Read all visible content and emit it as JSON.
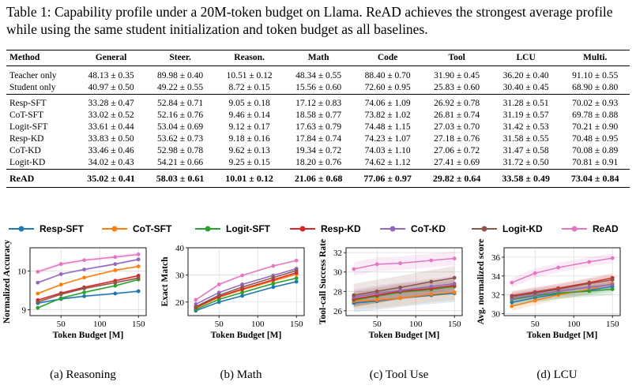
{
  "caption": "Table 1: Capability profile under a 20M-token budget on Llama. ReAD achieves the strongest average profile while using the same student initialization and token budget as all baselines.",
  "table": {
    "headers": [
      "Method",
      "General",
      "Steer.",
      "Reason.",
      "Math",
      "Code",
      "Tool",
      "LCU",
      "Multi."
    ],
    "groups": [
      [
        [
          "Teacher only",
          "48.13 ± 0.35",
          "89.98 ± 0.40",
          "10.51 ± 0.12",
          "48.34 ± 0.55",
          "88.40 ± 0.70",
          "31.90 ± 0.45",
          "36.20 ± 0.40",
          "91.10 ± 0.55"
        ],
        [
          "Student only",
          "40.97 ± 0.50",
          "49.22 ± 0.55",
          "8.72 ± 0.15",
          "15.56 ± 0.60",
          "72.60 ± 0.95",
          "25.83 ± 0.60",
          "30.40 ± 0.45",
          "68.90 ± 0.80"
        ]
      ],
      [
        [
          "Resp-SFT",
          "33.28 ± 0.47",
          "52.84 ± 0.71",
          "9.05 ± 0.18",
          "17.12 ± 0.83",
          "74.06 ± 1.09",
          "26.92 ± 0.78",
          "31.28 ± 0.51",
          "70.02 ± 0.93"
        ],
        [
          "CoT-SFT",
          "33.02 ± 0.52",
          "52.16 ± 0.76",
          "9.46 ± 0.14",
          "18.58 ± 0.77",
          "73.82 ± 1.02",
          "26.81 ± 0.74",
          "31.19 ± 0.57",
          "69.78 ± 0.88"
        ],
        [
          "Logit-SFT",
          "33.61 ± 0.44",
          "53.04 ± 0.69",
          "9.12 ± 0.17",
          "17.63 ± 0.79",
          "74.48 ± 1.15",
          "27.03 ± 0.70",
          "31.42 ± 0.53",
          "70.21 ± 0.90"
        ],
        [
          "Resp-KD",
          "33.83 ± 0.50",
          "53.62 ± 0.73",
          "9.18 ± 0.16",
          "17.84 ± 0.74",
          "74.23 ± 1.07",
          "27.18 ± 0.76",
          "31.58 ± 0.55",
          "70.48 ± 0.95"
        ],
        [
          "CoT-KD",
          "33.46 ± 0.46",
          "52.98 ± 0.78",
          "9.62 ± 0.13",
          "19.34 ± 0.72",
          "74.03 ± 1.10",
          "27.06 ± 0.72",
          "31.47 ± 0.58",
          "70.08 ± 0.89"
        ],
        [
          "Logit-KD",
          "34.02 ± 0.43",
          "54.21 ± 0.66",
          "9.25 ± 0.15",
          "18.20 ± 0.76",
          "74.62 ± 1.12",
          "27.41 ± 0.69",
          "31.72 ± 0.50",
          "70.81 ± 0.91"
        ]
      ]
    ],
    "read_row": [
      "ReAD",
      "35.02 ± 0.41",
      "58.03 ± 0.61",
      "10.01 ± 0.12",
      "21.06 ± 0.68",
      "77.06 ± 0.97",
      "29.82 ± 0.64",
      "33.58 ± 0.49",
      "73.04 ± 0.84"
    ]
  },
  "legend": [
    {
      "name": "Resp-SFT",
      "color": "#1f77b4"
    },
    {
      "name": "CoT-SFT",
      "color": "#ff7f0e"
    },
    {
      "name": "Logit-SFT",
      "color": "#2ca02c"
    },
    {
      "name": "Resp-KD",
      "color": "#d62728"
    },
    {
      "name": "CoT-KD",
      "color": "#9467bd"
    },
    {
      "name": "Logit-KD",
      "color": "#8c564b"
    },
    {
      "name": "ReAD",
      "color": "#e377c2"
    }
  ],
  "chart_data": [
    {
      "type": "line",
      "subcaption": "(a) Reasoning",
      "xlabel": "Token Budget [M]",
      "ylabel": "Normalized Accuracy",
      "x": [
        20,
        50,
        80,
        120,
        150
      ],
      "xlim": [
        10,
        160
      ],
      "ylim": [
        8.85,
        10.6
      ],
      "xticks": [
        50,
        100,
        150
      ],
      "yticks": [
        9,
        10
      ],
      "grid": true,
      "series": [
        {
          "name": "Resp-SFT",
          "values": [
            9.17,
            9.28,
            9.35,
            9.42,
            9.48
          ],
          "band": 0.03
        },
        {
          "name": "CoT-SFT",
          "values": [
            9.42,
            9.65,
            9.83,
            10.02,
            10.12
          ],
          "band": 0.03
        },
        {
          "name": "Logit-SFT",
          "values": [
            9.05,
            9.3,
            9.45,
            9.62,
            9.78
          ],
          "band": 0.03
        },
        {
          "name": "Resp-KD",
          "values": [
            9.25,
            9.43,
            9.58,
            9.75,
            9.88
          ],
          "band": 0.03
        },
        {
          "name": "CoT-KD",
          "values": [
            9.7,
            9.92,
            10.04,
            10.18,
            10.3
          ],
          "band": 0.03
        },
        {
          "name": "Logit-KD",
          "values": [
            9.2,
            9.4,
            9.55,
            9.7,
            9.82
          ],
          "band": 0.03
        },
        {
          "name": "ReAD",
          "values": [
            9.98,
            10.18,
            10.28,
            10.36,
            10.43
          ],
          "band": 0.05
        }
      ]
    },
    {
      "type": "line",
      "subcaption": "(b) Math",
      "xlabel": "Token Budget [M]",
      "ylabel": "Exact Match",
      "x": [
        20,
        50,
        80,
        120,
        150
      ],
      "xlim": [
        10,
        160
      ],
      "ylim": [
        15,
        40
      ],
      "xticks": [
        50,
        100,
        150
      ],
      "yticks": [
        20,
        30,
        40
      ],
      "grid": true,
      "series": [
        {
          "name": "Resp-SFT",
          "values": [
            16.8,
            20.0,
            22.3,
            25.5,
            27.5
          ],
          "band": 0.3
        },
        {
          "name": "CoT-SFT",
          "values": [
            17.8,
            21.8,
            24.5,
            27.8,
            30.2
          ],
          "band": 0.3
        },
        {
          "name": "Logit-SFT",
          "values": [
            17.3,
            21.0,
            23.5,
            26.8,
            28.8
          ],
          "band": 0.3
        },
        {
          "name": "Resp-KD",
          "values": [
            18.0,
            22.0,
            24.8,
            28.2,
            30.8
          ],
          "band": 0.3
        },
        {
          "name": "CoT-KD",
          "values": [
            19.2,
            23.5,
            26.5,
            29.8,
            32.3
          ],
          "band": 0.3
        },
        {
          "name": "Logit-KD",
          "values": [
            18.3,
            22.5,
            25.5,
            29.0,
            31.6
          ],
          "band": 0.3
        },
        {
          "name": "ReAD",
          "values": [
            20.8,
            26.5,
            29.8,
            33.3,
            35.3
          ],
          "band": 0.4
        }
      ]
    },
    {
      "type": "line",
      "subcaption": "(c) Tool Use",
      "xlabel": "Token Budget [M]",
      "ylabel": "Tool-call Success Rate",
      "x": [
        20,
        50,
        80,
        120,
        150
      ],
      "xlim": [
        10,
        160
      ],
      "ylim": [
        25.5,
        32.5
      ],
      "xticks": [
        50,
        100,
        150
      ],
      "yticks": [
        26,
        28,
        30,
        32
      ],
      "grid": true,
      "series": [
        {
          "name": "Resp-SFT",
          "values": [
            26.8,
            27.0,
            27.3,
            27.6,
            27.8
          ],
          "band": 0.9
        },
        {
          "name": "CoT-SFT",
          "values": [
            27.0,
            27.1,
            27.3,
            27.7,
            27.9
          ],
          "band": 0.8
        },
        {
          "name": "Logit-SFT",
          "values": [
            27.1,
            27.5,
            27.9,
            28.2,
            28.5
          ],
          "band": 0.7
        },
        {
          "name": "Resp-KD",
          "values": [
            27.2,
            27.6,
            28.0,
            28.3,
            28.6
          ],
          "band": 0.8
        },
        {
          "name": "CoT-KD",
          "values": [
            27.4,
            27.8,
            28.1,
            28.5,
            28.8
          ],
          "band": 0.8
        },
        {
          "name": "Logit-KD",
          "values": [
            27.6,
            28.0,
            28.4,
            29.0,
            29.4
          ],
          "band": 1.2
        },
        {
          "name": "ReAD",
          "values": [
            30.3,
            30.8,
            30.9,
            31.2,
            31.4
          ],
          "band": 0.7
        }
      ]
    },
    {
      "type": "line",
      "subcaption": "(d) LCU",
      "xlabel": "Token Budget [M]",
      "ylabel": "Avg. normalized score",
      "x": [
        20,
        50,
        80,
        120,
        150
      ],
      "xlim": [
        10,
        160
      ],
      "ylim": [
        29.8,
        37
      ],
      "xticks": [
        50,
        100,
        150
      ],
      "yticks": [
        30,
        32,
        34,
        36
      ],
      "grid": true,
      "series": [
        {
          "name": "Resp-SFT",
          "values": [
            31.2,
            31.7,
            32.1,
            32.5,
            32.9
          ],
          "band": 0.5
        },
        {
          "name": "CoT-SFT",
          "values": [
            30.8,
            31.4,
            32.0,
            32.6,
            33.2
          ],
          "band": 0.5
        },
        {
          "name": "Logit-SFT",
          "values": [
            31.5,
            31.9,
            32.2,
            32.4,
            32.6
          ],
          "band": 0.6
        },
        {
          "name": "Resp-KD",
          "values": [
            31.9,
            32.3,
            32.7,
            33.3,
            33.8
          ],
          "band": 0.5
        },
        {
          "name": "CoT-KD",
          "values": [
            31.6,
            32.0,
            32.4,
            32.8,
            33.1
          ],
          "band": 0.5
        },
        {
          "name": "Logit-KD",
          "values": [
            31.8,
            32.2,
            32.6,
            33.2,
            33.6
          ],
          "band": 0.5
        },
        {
          "name": "ReAD",
          "values": [
            33.3,
            34.3,
            34.9,
            35.5,
            35.9
          ],
          "band": 0.5
        }
      ]
    }
  ]
}
